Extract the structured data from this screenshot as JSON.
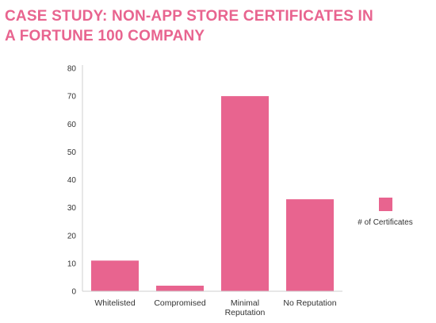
{
  "title_lines": [
    "CASE STUDY: NON-APP STORE CERTIFICATES IN",
    "A FORTUNE 100 COMPANY"
  ],
  "chart_data": {
    "type": "bar",
    "title": "CASE STUDY: NON-APP STORE CERTIFICATES IN A FORTUNE 100 COMPANY",
    "categories": [
      [
        "Whitelisted"
      ],
      [
        "Compromised"
      ],
      [
        "Minimal",
        "Reputation"
      ],
      [
        "No Reputation"
      ]
    ],
    "series": [
      {
        "name": "# of Certificates",
        "values": [
          11,
          2,
          70,
          33
        ]
      }
    ],
    "ylim": [
      0,
      80
    ],
    "yticks": [
      0,
      10,
      20,
      30,
      40,
      50,
      60,
      70,
      80
    ],
    "xlabel": "",
    "ylabel": "",
    "grid": false,
    "legend_position": "right",
    "bar_color": "#e8648f",
    "axis_color": "#cfcfcf"
  }
}
